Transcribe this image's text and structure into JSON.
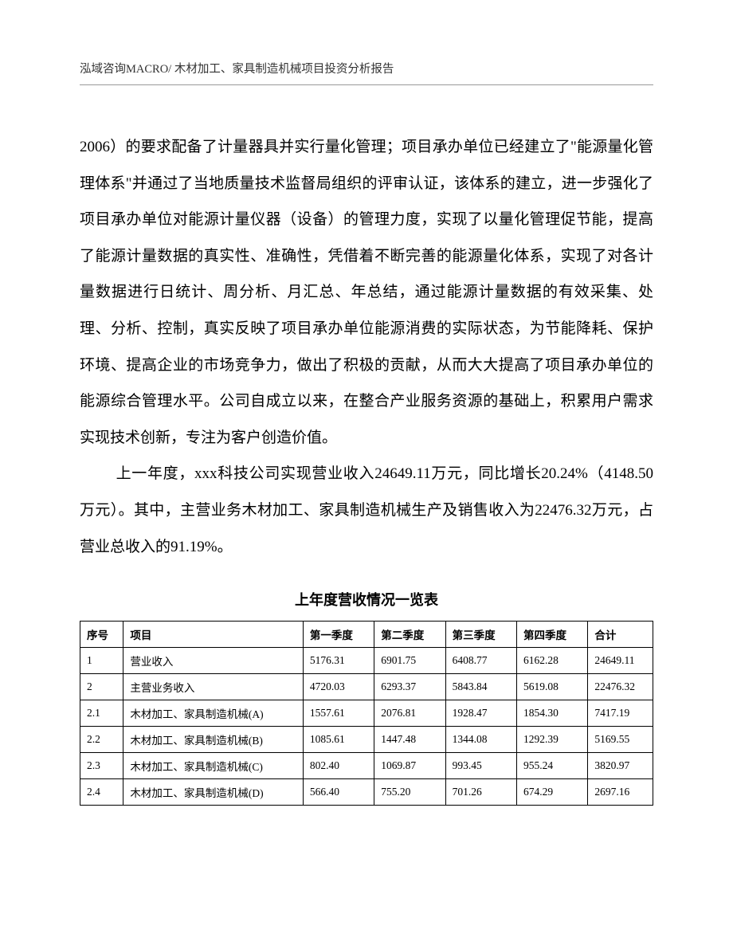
{
  "header": {
    "text": "泓域咨询MACRO/   木材加工、家具制造机械项目投资分析报告"
  },
  "paragraphs": {
    "p1": "2006）的要求配备了计量器具并实行量化管理；项目承办单位已经建立了\"能源量化管理体系\"并通过了当地质量技术监督局组织的评审认证，该体系的建立，进一步强化了项目承办单位对能源计量仪器（设备）的管理力度，实现了以量化管理促节能，提高了能源计量数据的真实性、准确性，凭借着不断完善的能源量化体系，实现了对各计量数据进行日统计、周分析、月汇总、年总结，通过能源计量数据的有效采集、处理、分析、控制，真实反映了项目承办单位能源消费的实际状态，为节能降耗、保护环境、提高企业的市场竞争力，做出了积极的贡献，从而大大提高了项目承办单位的能源综合管理水平。公司自成立以来，在整合产业服务资源的基础上，积累用户需求实现技术创新，专注为客户创造价值。",
    "p2": "上一年度，xxx科技公司实现营业收入24649.11万元，同比增长20.24%（4148.50万元）。其中，主营业务木材加工、家具制造机械生产及销售收入为22476.32万元，占营业总收入的91.19%。"
  },
  "table": {
    "title": "上年度营收情况一览表",
    "columns": {
      "seq": "序号",
      "item": "项目",
      "q1": "第一季度",
      "q2": "第二季度",
      "q3": "第三季度",
      "q4": "第四季度",
      "total": "合计"
    },
    "rows": [
      {
        "seq": "1",
        "item": "营业收入",
        "q1": "5176.31",
        "q2": "6901.75",
        "q3": "6408.77",
        "q4": "6162.28",
        "total": "24649.11"
      },
      {
        "seq": "2",
        "item": "主营业务收入",
        "q1": "4720.03",
        "q2": "6293.37",
        "q3": "5843.84",
        "q4": "5619.08",
        "total": "22476.32"
      },
      {
        "seq": "2.1",
        "item": "木材加工、家具制造机械(A)",
        "q1": "1557.61",
        "q2": "2076.81",
        "q3": "1928.47",
        "q4": "1854.30",
        "total": "7417.19"
      },
      {
        "seq": "2.2",
        "item": "木材加工、家具制造机械(B)",
        "q1": "1085.61",
        "q2": "1447.48",
        "q3": "1344.08",
        "q4": "1292.39",
        "total": "5169.55"
      },
      {
        "seq": "2.3",
        "item": "木材加工、家具制造机械(C)",
        "q1": "802.40",
        "q2": "1069.87",
        "q3": "993.45",
        "q4": "955.24",
        "total": "3820.97"
      },
      {
        "seq": "2.4",
        "item": "木材加工、家具制造机械(D)",
        "q1": "566.40",
        "q2": "755.20",
        "q3": "701.26",
        "q4": "674.29",
        "total": "2697.16"
      }
    ]
  }
}
